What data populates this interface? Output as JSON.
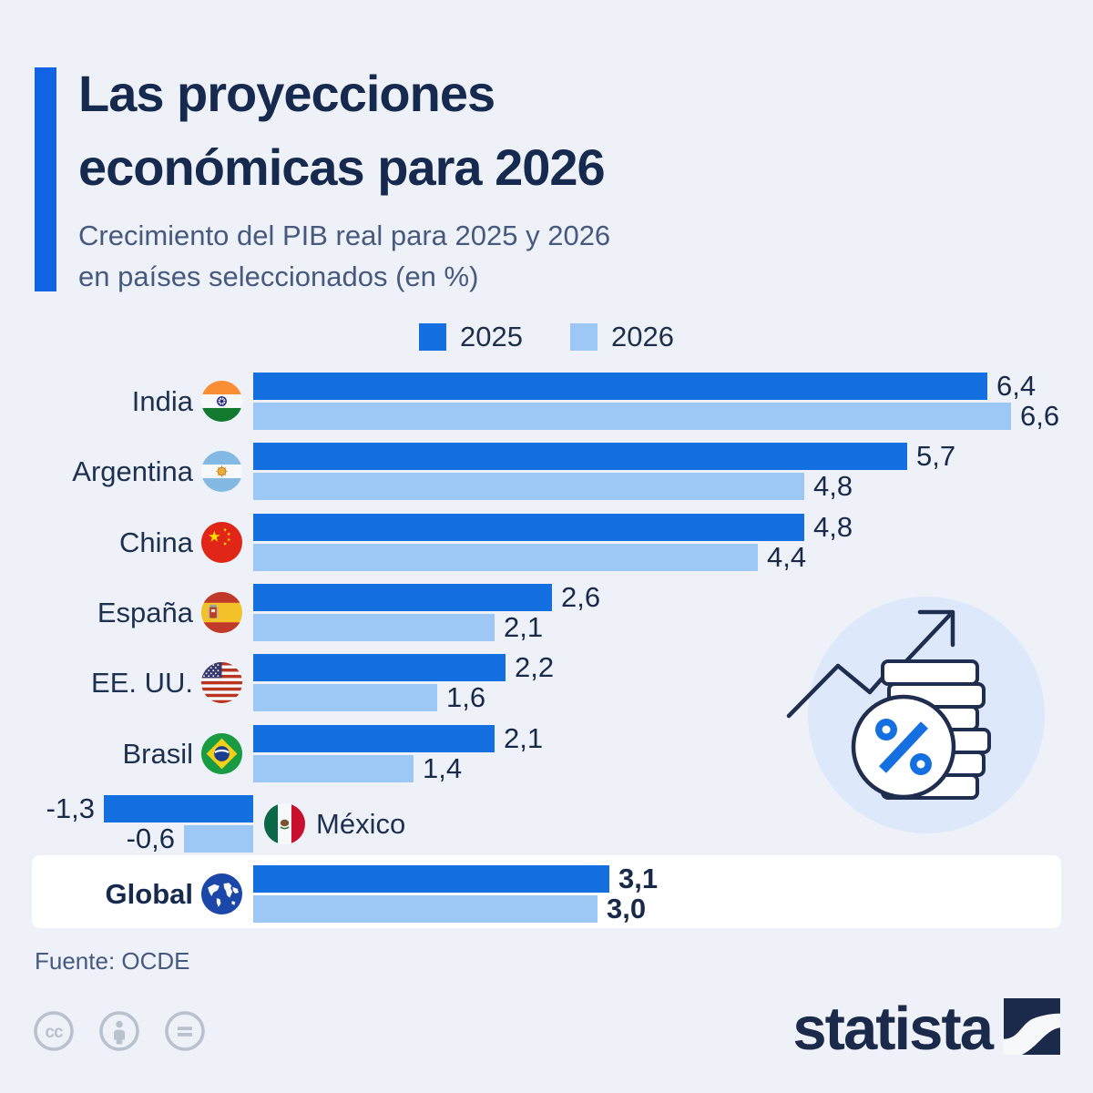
{
  "page": {
    "background": "#eef2f8"
  },
  "header": {
    "accent_color": "#1064e4",
    "title_line1": "Las proyecciones",
    "title_line2": "económicas para 2026",
    "subtitle_line1": "Crecimiento del PIB real para 2025 y 2026",
    "subtitle_line2": "en países seleccionados (en %)"
  },
  "legend": {
    "items": [
      {
        "label": "2025",
        "color": "#1470e0"
      },
      {
        "label": "2026",
        "color": "#9dc7f4"
      }
    ]
  },
  "chart_data": {
    "type": "bar",
    "orientation": "horizontal",
    "unit": "%",
    "series_names": [
      "2025",
      "2026"
    ],
    "colors": {
      "2025": "#1470e0",
      "2026": "#9dc7f4"
    },
    "xlim": [
      -1.5,
      7
    ],
    "grid": false,
    "legend_position": "top",
    "categories": [
      "India",
      "Argentina",
      "China",
      "España",
      "EE. UU.",
      "Brasil",
      "México",
      "Global"
    ],
    "series": [
      {
        "name": "2025",
        "values": [
          6.4,
          5.7,
          4.8,
          2.6,
          2.2,
          2.1,
          -1.3,
          3.1
        ]
      },
      {
        "name": "2026",
        "values": [
          6.6,
          4.8,
          4.4,
          2.1,
          1.6,
          1.4,
          -0.6,
          3.0
        ]
      }
    ],
    "rows": [
      {
        "country": "India",
        "flag": "india-flag",
        "v2025": 6.4,
        "v2026": 6.6,
        "d2025": "6,4",
        "d2026": "6,6"
      },
      {
        "country": "Argentina",
        "flag": "argentina-flag",
        "v2025": 5.7,
        "v2026": 4.8,
        "d2025": "5,7",
        "d2026": "4,8"
      },
      {
        "country": "China",
        "flag": "china-flag",
        "v2025": 4.8,
        "v2026": 4.4,
        "d2025": "4,8",
        "d2026": "4,4"
      },
      {
        "country": "España",
        "flag": "spain-flag",
        "v2025": 2.6,
        "v2026": 2.1,
        "d2025": "2,6",
        "d2026": "2,1"
      },
      {
        "country": "EE. UU.",
        "flag": "usa-flag",
        "v2025": 2.2,
        "v2026": 1.6,
        "d2025": "2,2",
        "d2026": "1,6"
      },
      {
        "country": "Brasil",
        "flag": "brazil-flag",
        "v2025": 2.1,
        "v2026": 1.4,
        "d2025": "2,1",
        "d2026": "1,4"
      },
      {
        "country": "México",
        "flag": "mexico-flag",
        "v2025": -1.3,
        "v2026": -0.6,
        "d2025": "-1,3",
        "d2026": "-0,6"
      },
      {
        "country": "Global",
        "flag": "globe-icon",
        "v2025": 3.1,
        "v2026": 3.0,
        "d2025": "3,1",
        "d2026": "3,0"
      }
    ]
  },
  "illustration": {
    "name": "percent-coins-growth-illustration",
    "percent_color": "#1470e0",
    "outline_color": "#1f2d4e",
    "halo_color": "#dde9fa"
  },
  "footer": {
    "source": "Fuente: OCDE",
    "license_icons": [
      "cc-icon",
      "cc-by-icon",
      "cc-nd-icon"
    ],
    "brand": "statista",
    "brand_color": "#1b2a4b"
  }
}
